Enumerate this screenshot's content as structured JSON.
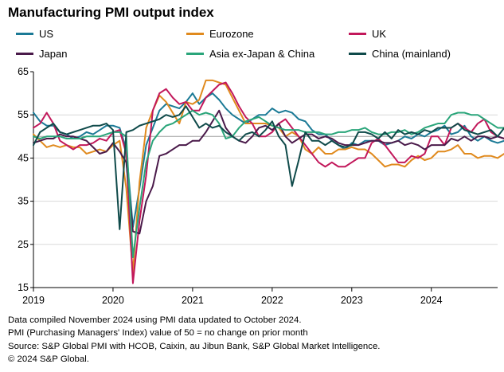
{
  "chart_data": {
    "type": "line",
    "title": "Manufacturing PMI output index",
    "xlabel": "",
    "ylabel": "",
    "ylim": [
      15,
      65
    ],
    "yticks": [
      15,
      25,
      35,
      45,
      55,
      65
    ],
    "gridlines": [
      25,
      35,
      45,
      55
    ],
    "reference_line": 50,
    "xlim": [
      2019.0,
      2024.833
    ],
    "xticks": [
      {
        "label": "2019",
        "x": 2019
      },
      {
        "label": "2020",
        "x": 2020
      },
      {
        "label": "2021",
        "x": 2021
      },
      {
        "label": "2022",
        "x": 2022
      },
      {
        "label": "2023",
        "x": 2023
      },
      {
        "label": "2024",
        "x": 2024
      }
    ],
    "start": {
      "year": 2019,
      "month": 1
    },
    "series": [
      {
        "name": "US",
        "color": "#1b7a96",
        "values": [
          55.5,
          53.5,
          52.5,
          52.5,
          51,
          50.5,
          49.5,
          50,
          51,
          50.5,
          51.5,
          52.5,
          52.5,
          52,
          47,
          29,
          38,
          48,
          52,
          56,
          57.5,
          57,
          56.5,
          58,
          60,
          57.5,
          59,
          60,
          58.5,
          56.5,
          55,
          54,
          53,
          54,
          55,
          55,
          56.5,
          55.5,
          56,
          55.5,
          54,
          53.5,
          51.5,
          50.5,
          50.5,
          49,
          48,
          47,
          48.5,
          48,
          49,
          49,
          49,
          48,
          48.5,
          49,
          50,
          49.5,
          50.5,
          50,
          51,
          51.5,
          52.5,
          50.5,
          51,
          52.5,
          50,
          49,
          50,
          49,
          48.5,
          49
        ]
      },
      {
        "name": "Eurozone",
        "color": "#e08a1e",
        "values": [
          50.5,
          49,
          47.5,
          48,
          47.5,
          48,
          47.5,
          47.5,
          46,
          46.5,
          47,
          46.5,
          48,
          49,
          38,
          18.5,
          39.5,
          52,
          56,
          59.5,
          58,
          55.5,
          53,
          58,
          57.5,
          58.5,
          63,
          63,
          62.5,
          62,
          59,
          56,
          53,
          53,
          53,
          53,
          52.5,
          52,
          50,
          51,
          50,
          47,
          46,
          47.5,
          46,
          46,
          47,
          47,
          47.5,
          47,
          47,
          46,
          44.5,
          43,
          43.5,
          43.5,
          43,
          44.5,
          45.5,
          44.5,
          45,
          46.5,
          46.5,
          47,
          48,
          46,
          46,
          45,
          45.5,
          45.5,
          45,
          46
        ]
      },
      {
        "name": "UK",
        "color": "#c2185b",
        "values": [
          52,
          53,
          55.5,
          53,
          49,
          48,
          47,
          48,
          48,
          48.5,
          49.5,
          49,
          51,
          51.5,
          46,
          16,
          30.5,
          41,
          56,
          60,
          61,
          59,
          57.5,
          58,
          56,
          56,
          59,
          60.5,
          62,
          62.5,
          60,
          57,
          54.5,
          53,
          50,
          50,
          51,
          53,
          54,
          52,
          50,
          48,
          46,
          44,
          43,
          44,
          43,
          43,
          44,
          45,
          45,
          48.5,
          49.5,
          48,
          46,
          44,
          44,
          45.5,
          45,
          46,
          50,
          50,
          48,
          52,
          53,
          52,
          51,
          53,
          54,
          51,
          50,
          49.5
        ]
      },
      {
        "name": "Japan",
        "color": "#4a1a4a",
        "values": [
          48.5,
          49,
          49.5,
          49.5,
          50.5,
          50,
          50,
          49.5,
          49,
          47.5,
          46,
          46.5,
          48.5,
          46.5,
          44,
          28,
          27.5,
          35,
          38.5,
          45.5,
          46,
          47,
          48,
          48,
          49,
          49,
          51,
          53.5,
          56,
          52,
          50,
          49,
          48.5,
          50,
          52,
          52.5,
          51.5,
          53,
          50,
          48.5,
          49.5,
          50.5,
          50.5,
          49.5,
          50,
          49.5,
          48.5,
          48,
          48,
          48,
          48.5,
          49,
          49,
          48.5,
          48.5,
          49,
          48,
          48.5,
          48,
          47,
          48,
          48,
          48,
          49.5,
          49,
          50,
          49,
          50,
          50,
          49.5,
          50,
          49.5
        ]
      },
      {
        "name": "Asia ex-Japan & China",
        "color": "#2aa57a",
        "values": [
          50,
          49.5,
          50,
          50,
          50,
          49.5,
          49.5,
          49.5,
          50,
          50,
          50,
          50.5,
          51,
          51,
          50,
          22,
          33.5,
          44,
          49,
          51,
          52.5,
          53,
          54,
          55,
          56,
          55,
          55.5,
          55,
          53,
          49.5,
          50,
          52,
          53.5,
          54,
          54.5,
          53.5,
          52.5,
          52,
          51.5,
          51.5,
          51.5,
          51,
          51,
          51,
          50.5,
          50.5,
          51,
          51,
          51.5,
          51.5,
          52,
          51,
          50.5,
          50.5,
          51,
          51,
          51.5,
          50.5,
          51,
          52,
          52.5,
          53,
          53,
          55,
          55.5,
          55.5,
          55,
          55,
          54,
          53,
          52,
          52
        ]
      },
      {
        "name": "China (mainland)",
        "color": "#0f4a4a",
        "values": [
          48,
          51,
          52,
          53,
          51,
          50.5,
          51,
          51.5,
          52,
          52.5,
          52.5,
          53,
          51.5,
          28.5,
          51,
          51.5,
          52.5,
          53,
          53.5,
          54,
          55,
          54.5,
          55,
          57,
          54.5,
          52,
          53,
          52,
          52.5,
          51,
          50,
          49,
          50.5,
          51,
          50,
          51.5,
          53.5,
          50,
          48,
          38.5,
          44.5,
          51,
          49,
          49,
          48,
          49,
          48,
          47.5,
          48,
          51,
          51,
          50.5,
          49.5,
          51,
          49.5,
          51.5,
          50.5,
          51,
          50.5,
          51.5,
          51,
          52,
          52,
          52,
          53,
          51.5,
          51,
          50.5,
          51,
          51.5,
          50,
          52
        ]
      }
    ],
    "legend": {
      "position": "top",
      "columns": 3
    }
  },
  "footer": {
    "line1": "Data compiled November 2024 using PMI data updated to October 2024.",
    "line2": "PMI (Purchasing Managers' Index) value of 50 = no change on prior month",
    "line3": "Source: S&P Global PMI with HCOB, Caixin, au Jibun Bank, S&P Global Market Intelligence.",
    "line4": "© 2024 S&P Global."
  }
}
